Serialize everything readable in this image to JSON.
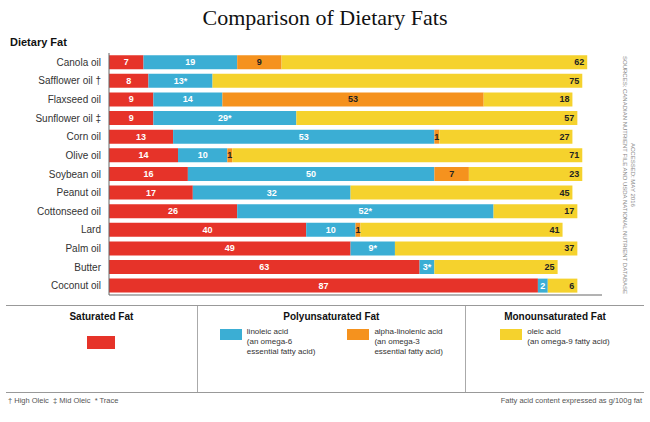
{
  "chart_data": {
    "type": "bar",
    "orientation": "horizontal",
    "stacked": true,
    "data_labels": true,
    "grid": false,
    "tick_labels": "y",
    "title": "Comparison of Dietary Fats",
    "subtitle": "Dietary Fat",
    "categories": [
      "Canola oil",
      "Safflower oil †",
      "Flaxseed oil",
      "Sunflower oil ‡",
      "Corn oil",
      "Olive oil",
      "Soybean oil",
      "Peanut oil",
      "Cottonseed oil",
      "Lard",
      "Palm oil",
      "Butter",
      "Coconut oil"
    ],
    "xlim": [
      0,
      100
    ],
    "series": [
      {
        "name": "Saturated Fat",
        "color": "#E63329",
        "values": [
          7,
          8,
          9,
          9,
          13,
          14,
          16,
          17,
          26,
          40,
          49,
          63,
          87
        ]
      },
      {
        "name": "linoleic acid\n(an omega-6\nessential fatty acid)",
        "color": "#3BAED4",
        "values": [
          19,
          13,
          14,
          29,
          53,
          10,
          50,
          32,
          52,
          10,
          9,
          3,
          2
        ],
        "value_labels": [
          "19",
          "13*",
          "14",
          "29*",
          "53",
          "10",
          "50",
          "32",
          "52*",
          "10",
          "9*",
          "3*",
          "2"
        ]
      },
      {
        "name": "alpha-linolenic acid\n(an omega-3\nessential fatty acid)",
        "color": "#F5921E",
        "values": [
          9,
          0,
          53,
          0,
          1,
          1,
          7,
          0,
          0,
          1,
          0,
          0,
          0
        ],
        "value_labels": [
          "9",
          null,
          "53",
          null,
          "1",
          "1",
          "7",
          null,
          null,
          "1",
          null,
          null,
          null
        ]
      },
      {
        "name": "oleic acid\n(an omega-9 fatty acid)",
        "color": "#F5D22D",
        "values": [
          62,
          75,
          18,
          57,
          27,
          71,
          23,
          45,
          17,
          41,
          37,
          25,
          6
        ]
      }
    ],
    "annotations": [
      "Polyunsaturated Fat",
      "Monounsaturated Fat",
      "† High Oleic  ‡ Mid Oleic  * Trace",
      "Fatty acid content expressed as g/100g fat",
      "SOURCES: CANADIAN NUTRIENT FILE AND USDA NATIONAL NUTRIENT DATABASE",
      "ACCESSED: MAY 2016"
    ]
  }
}
